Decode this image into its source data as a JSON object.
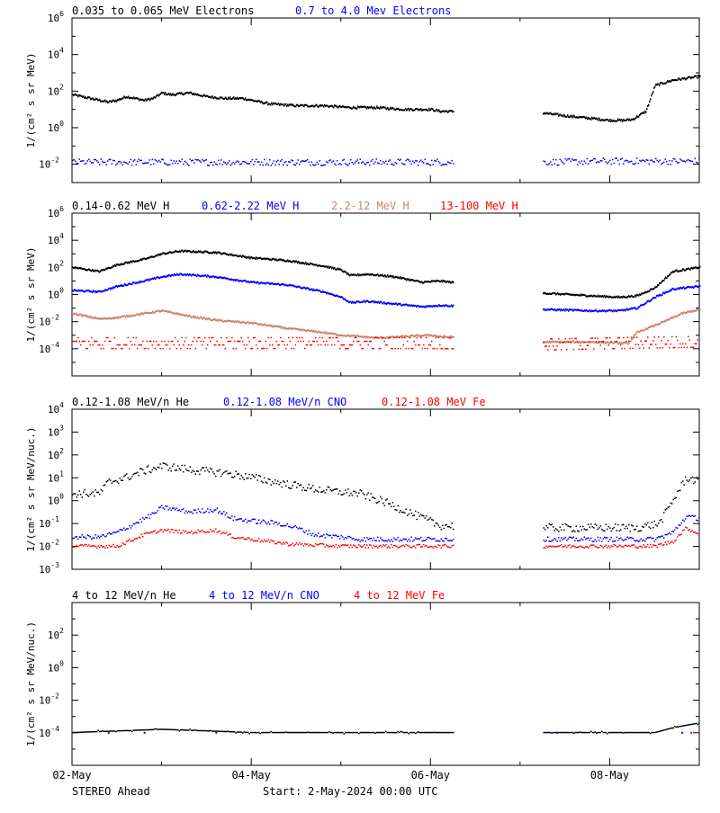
{
  "colors": {
    "black": "#000000",
    "blue": "#0000ff",
    "tan": "#c8826e",
    "red": "#ff0000",
    "axis": "#000000",
    "background": "#ffffff"
  },
  "footer": {
    "spacecraft": "STEREO Ahead",
    "start_label": "Start:",
    "start_time": "2-May-2024 00:00 UTC"
  },
  "chart_data": [
    {
      "type": "scatter",
      "title": "",
      "legend": [
        {
          "text": "0.035 to 0.065 MeV Electrons",
          "color": "#000000"
        },
        {
          "text": "0.7 to 4.0 Mev Electrons",
          "color": "#0000ff"
        }
      ],
      "ylabel": "1/(cm² s sr MeV)",
      "yscale": "log",
      "ylim": [
        0.001,
        1000000
      ],
      "yticks": [
        {
          "exp": -2,
          "base": "10",
          "sup": "-2"
        },
        {
          "exp": 0,
          "base": "10",
          "sup": "0"
        },
        {
          "exp": 2,
          "base": "10",
          "sup": "2"
        },
        {
          "exp": 4,
          "base": "10",
          "sup": "4"
        },
        {
          "exp": 6,
          "base": "10",
          "sup": "6"
        }
      ],
      "x_unit": "days since 2-May-2024 00:00 UTC",
      "xlim": [
        0,
        7.0
      ],
      "gap": [
        4.25,
        5.25
      ],
      "series": [
        {
          "name": "0.035 to 0.065 MeV Electrons",
          "color": "#000000",
          "style": "dense",
          "x": [
            0,
            0.2,
            0.4,
            0.5,
            0.6,
            0.8,
            0.9,
            1.0,
            1.1,
            1.3,
            1.5,
            1.7,
            1.9,
            2.2,
            2.5,
            2.8,
            3.1,
            3.4,
            3.7,
            4.0,
            4.1,
            5.25,
            5.5,
            5.8,
            6.0,
            6.15,
            6.25,
            6.4,
            6.5,
            6.7,
            7.0
          ],
          "y": [
            1.8,
            1.6,
            1.4,
            1.5,
            1.7,
            1.5,
            1.6,
            1.9,
            1.8,
            1.9,
            1.7,
            1.6,
            1.6,
            1.3,
            1.2,
            1.2,
            1.1,
            1.1,
            1.0,
            1.0,
            0.9,
            0.8,
            0.65,
            0.5,
            0.4,
            0.4,
            0.45,
            0.9,
            2.3,
            2.6,
            2.8
          ]
        },
        {
          "name": "0.7 to 4.0 Mev Electrons",
          "color": "#0000ff",
          "style": "noisy",
          "x": [
            0,
            1,
            2,
            3,
            4,
            4.1,
            5.25,
            6,
            7.0
          ],
          "y": [
            -1.9,
            -1.9,
            -1.9,
            -1.9,
            -1.9,
            -1.9,
            -1.9,
            -1.85,
            -1.85
          ],
          "spread": 0.35
        }
      ]
    },
    {
      "type": "scatter",
      "title": "",
      "legend": [
        {
          "text": "0.14-0.62 MeV H",
          "color": "#000000"
        },
        {
          "text": "0.62-2.22 MeV H",
          "color": "#0000ff"
        },
        {
          "text": "2.2-12 MeV H",
          "color": "#c8826e"
        },
        {
          "text": "13-100 MeV H",
          "color": "#ff0000"
        }
      ],
      "ylabel": "1/(cm² s sr MeV)",
      "yscale": "log",
      "ylim": [
        1e-06,
        1000000
      ],
      "yticks": [
        {
          "exp": -4,
          "base": "10",
          "sup": "-4"
        },
        {
          "exp": -2,
          "base": "10",
          "sup": "-2"
        },
        {
          "exp": 0,
          "base": "10",
          "sup": "0"
        },
        {
          "exp": 2,
          "base": "10",
          "sup": "2"
        },
        {
          "exp": 4,
          "base": "10",
          "sup": "4"
        },
        {
          "exp": 6,
          "base": "10",
          "sup": "6"
        }
      ],
      "x_unit": "days since 2-May-2024 00:00 UTC",
      "xlim": [
        0,
        7.0
      ],
      "gap": [
        4.25,
        5.25
      ],
      "series": [
        {
          "name": "0.14-0.62 MeV H",
          "color": "#000000",
          "style": "dense",
          "x": [
            0,
            0.3,
            0.5,
            0.8,
            1.0,
            1.2,
            1.6,
            2.0,
            2.4,
            2.8,
            3.0,
            3.1,
            3.3,
            3.6,
            3.9,
            4.1,
            5.25,
            5.8,
            6.1,
            6.3,
            6.5,
            6.7,
            7.0
          ],
          "y": [
            2.0,
            1.7,
            2.2,
            2.6,
            3.0,
            3.2,
            3.1,
            2.7,
            2.5,
            2.1,
            1.8,
            1.4,
            1.5,
            1.3,
            0.9,
            1.0,
            0.1,
            -0.1,
            -0.2,
            -0.1,
            0.5,
            1.7,
            2.0
          ]
        },
        {
          "name": "0.62-2.22 MeV H",
          "color": "#0000ff",
          "style": "dense",
          "x": [
            0,
            0.3,
            0.5,
            0.8,
            1.0,
            1.2,
            1.6,
            2.0,
            2.4,
            2.8,
            3.0,
            3.1,
            3.3,
            3.6,
            3.9,
            4.1,
            5.25,
            5.8,
            6.1,
            6.3,
            6.5,
            6.7,
            7.0
          ],
          "y": [
            0.3,
            0.2,
            0.6,
            1.0,
            1.3,
            1.5,
            1.3,
            0.9,
            0.7,
            0.2,
            -0.2,
            -0.6,
            -0.5,
            -0.7,
            -0.9,
            -0.8,
            -1.1,
            -1.2,
            -1.2,
            -1.0,
            -0.2,
            0.4,
            0.6
          ]
        },
        {
          "name": "2.2-12 MeV H",
          "color": "#c8826e",
          "style": "dense",
          "x": [
            0,
            0.3,
            0.5,
            1.0,
            1.3,
            1.6,
            2.0,
            2.4,
            2.8,
            3.0,
            3.4,
            3.7,
            4.0,
            4.1,
            5.25,
            5.8,
            6.2,
            6.3,
            6.6,
            6.8,
            7.0
          ],
          "y": [
            -1.4,
            -1.8,
            -1.7,
            -1.2,
            -1.6,
            -1.9,
            -2.1,
            -2.5,
            -2.8,
            -3.0,
            -3.2,
            -3.1,
            -3.0,
            -3.1,
            -3.5,
            -3.5,
            -3.6,
            -2.8,
            -2.0,
            -1.4,
            -1.1
          ]
        },
        {
          "name": "13-100 MeV H",
          "color": "#ff0000",
          "style": "bands",
          "x": [
            0,
            4.1,
            5.25,
            7.0
          ],
          "y": [
            -3.6,
            -3.6,
            -3.7,
            -3.5
          ],
          "spread": 0.8
        }
      ]
    },
    {
      "type": "scatter",
      "title": "",
      "legend": [
        {
          "text": "0.12-1.08 MeV/n He",
          "color": "#000000"
        },
        {
          "text": "0.12-1.08 MeV/n CNO",
          "color": "#0000ff"
        },
        {
          "text": "0.12-1.08 MeV Fe",
          "color": "#ff0000"
        }
      ],
      "ylabel": "1/(cm² s sr MeV/nuc.)",
      "yscale": "log",
      "ylim": [
        0.001,
        10000
      ],
      "yticks": [
        {
          "exp": -3,
          "base": "10",
          "sup": "-3"
        },
        {
          "exp": -2,
          "base": "10",
          "sup": "-2"
        },
        {
          "exp": -1,
          "base": "10",
          "sup": "-1"
        },
        {
          "exp": 0,
          "base": "10",
          "sup": "0"
        },
        {
          "exp": 1,
          "base": "10",
          "sup": "1"
        },
        {
          "exp": 2,
          "base": "10",
          "sup": "2"
        },
        {
          "exp": 3,
          "base": "10",
          "sup": "3"
        },
        {
          "exp": 4,
          "base": "10",
          "sup": "4"
        }
      ],
      "x_unit": "days since 2-May-2024 00:00 UTC",
      "xlim": [
        0,
        7.0
      ],
      "gap": [
        4.25,
        5.25
      ],
      "series": [
        {
          "name": "0.12-1.08 MeV/n He",
          "color": "#000000",
          "style": "noisy",
          "x": [
            0,
            0.3,
            0.4,
            0.6,
            0.8,
            1.0,
            1.4,
            1.7,
            2.0,
            2.4,
            2.7,
            2.9,
            3.2,
            3.5,
            3.8,
            4.1,
            5.25,
            5.9,
            6.3,
            6.55,
            6.7,
            6.85,
            7.0
          ],
          "y": [
            0.3,
            0.3,
            0.8,
            1.0,
            1.3,
            1.5,
            1.3,
            1.2,
            1.0,
            0.7,
            0.5,
            0.4,
            0.3,
            -0.1,
            -0.6,
            -1.1,
            -1.2,
            -1.2,
            -1.2,
            -1.0,
            0.0,
            1.0,
            0.8
          ],
          "spread": 0.35
        },
        {
          "name": "0.12-1.08 MeV/n CNO",
          "color": "#0000ff",
          "style": "noisy",
          "x": [
            0,
            0.3,
            0.5,
            0.7,
            0.9,
            1.0,
            1.3,
            1.6,
            1.8,
            2.0,
            2.3,
            2.5,
            2.7,
            3.0,
            3.2,
            3.5,
            4.1,
            5.25,
            6.5,
            6.7,
            6.85,
            7.0
          ],
          "y": [
            -1.6,
            -1.6,
            -1.4,
            -1.0,
            -0.6,
            -0.3,
            -0.5,
            -0.4,
            -0.8,
            -0.9,
            -1.0,
            -1.2,
            -1.5,
            -1.6,
            -1.7,
            -1.7,
            -1.7,
            -1.7,
            -1.7,
            -1.4,
            -0.7,
            -0.8
          ],
          "spread": 0.2
        },
        {
          "name": "0.12-1.08 MeV Fe",
          "color": "#ff0000",
          "style": "noisy",
          "x": [
            0,
            0.5,
            0.8,
            1.0,
            1.3,
            1.6,
            1.8,
            2.0,
            2.4,
            3.0,
            3.5,
            4.1,
            5.25,
            6.5,
            6.7,
            6.85,
            7.0
          ],
          "y": [
            -2.0,
            -2.0,
            -1.5,
            -1.3,
            -1.4,
            -1.3,
            -1.6,
            -1.7,
            -1.9,
            -2.0,
            -2.0,
            -2.0,
            -2.0,
            -2.0,
            -1.8,
            -1.2,
            -1.5
          ],
          "spread": 0.15
        }
      ]
    },
    {
      "type": "scatter",
      "title": "",
      "legend": [
        {
          "text": "4 to 12 MeV/n He",
          "color": "#000000"
        },
        {
          "text": "4 to 12 MeV/n CNO",
          "color": "#0000ff"
        },
        {
          "text": "4 to 12 MeV Fe",
          "color": "#ff0000"
        }
      ],
      "ylabel": "1/(cm² s sr MeV/nuc.)",
      "yscale": "log",
      "ylim": [
        1e-06,
        10000
      ],
      "yticks": [
        {
          "exp": -4,
          "base": "10",
          "sup": "-4"
        },
        {
          "exp": -2,
          "base": "10",
          "sup": "-2"
        },
        {
          "exp": 0,
          "base": "10",
          "sup": "0"
        },
        {
          "exp": 2,
          "base": "10",
          "sup": "2"
        }
      ],
      "x_unit": "days since 2-May-2024 00:00 UTC",
      "xlim": [
        0,
        7.0
      ],
      "gap": [
        4.25,
        5.25
      ],
      "series": [
        {
          "name": "4 to 12 MeV/n He",
          "color": "#000000",
          "style": "floor",
          "x": [
            0,
            1.0,
            2.0,
            3.0,
            4.1,
            5.25,
            6.5,
            6.7,
            7.0
          ],
          "y": [
            -4.0,
            -3.8,
            -4.0,
            -4.0,
            -4.0,
            -4.0,
            -4.0,
            -3.7,
            -3.4
          ],
          "spread": 0.15
        },
        {
          "name": "4 to 12 MeV/n CNO",
          "color": "#0000ff",
          "style": "sparse",
          "x": [
            0.4,
            0.8,
            1.6,
            5.4,
            6.8
          ],
          "y": [
            -4.0,
            -4.0,
            -4.0,
            -4.0,
            -4.0
          ]
        },
        {
          "name": "4 to 12 MeV Fe",
          "color": "#ff0000",
          "style": "sparse",
          "x": [
            5.6,
            6.9
          ],
          "y": [
            -4.0,
            -4.0
          ]
        }
      ]
    }
  ],
  "xaxis": {
    "ticks": [
      {
        "day": 0,
        "label": "02-May"
      },
      {
        "day": 2,
        "label": "04-May"
      },
      {
        "day": 4,
        "label": "06-May"
      },
      {
        "day": 6,
        "label": "08-May"
      }
    ],
    "minor_days": [
      1,
      3,
      5,
      7
    ]
  }
}
